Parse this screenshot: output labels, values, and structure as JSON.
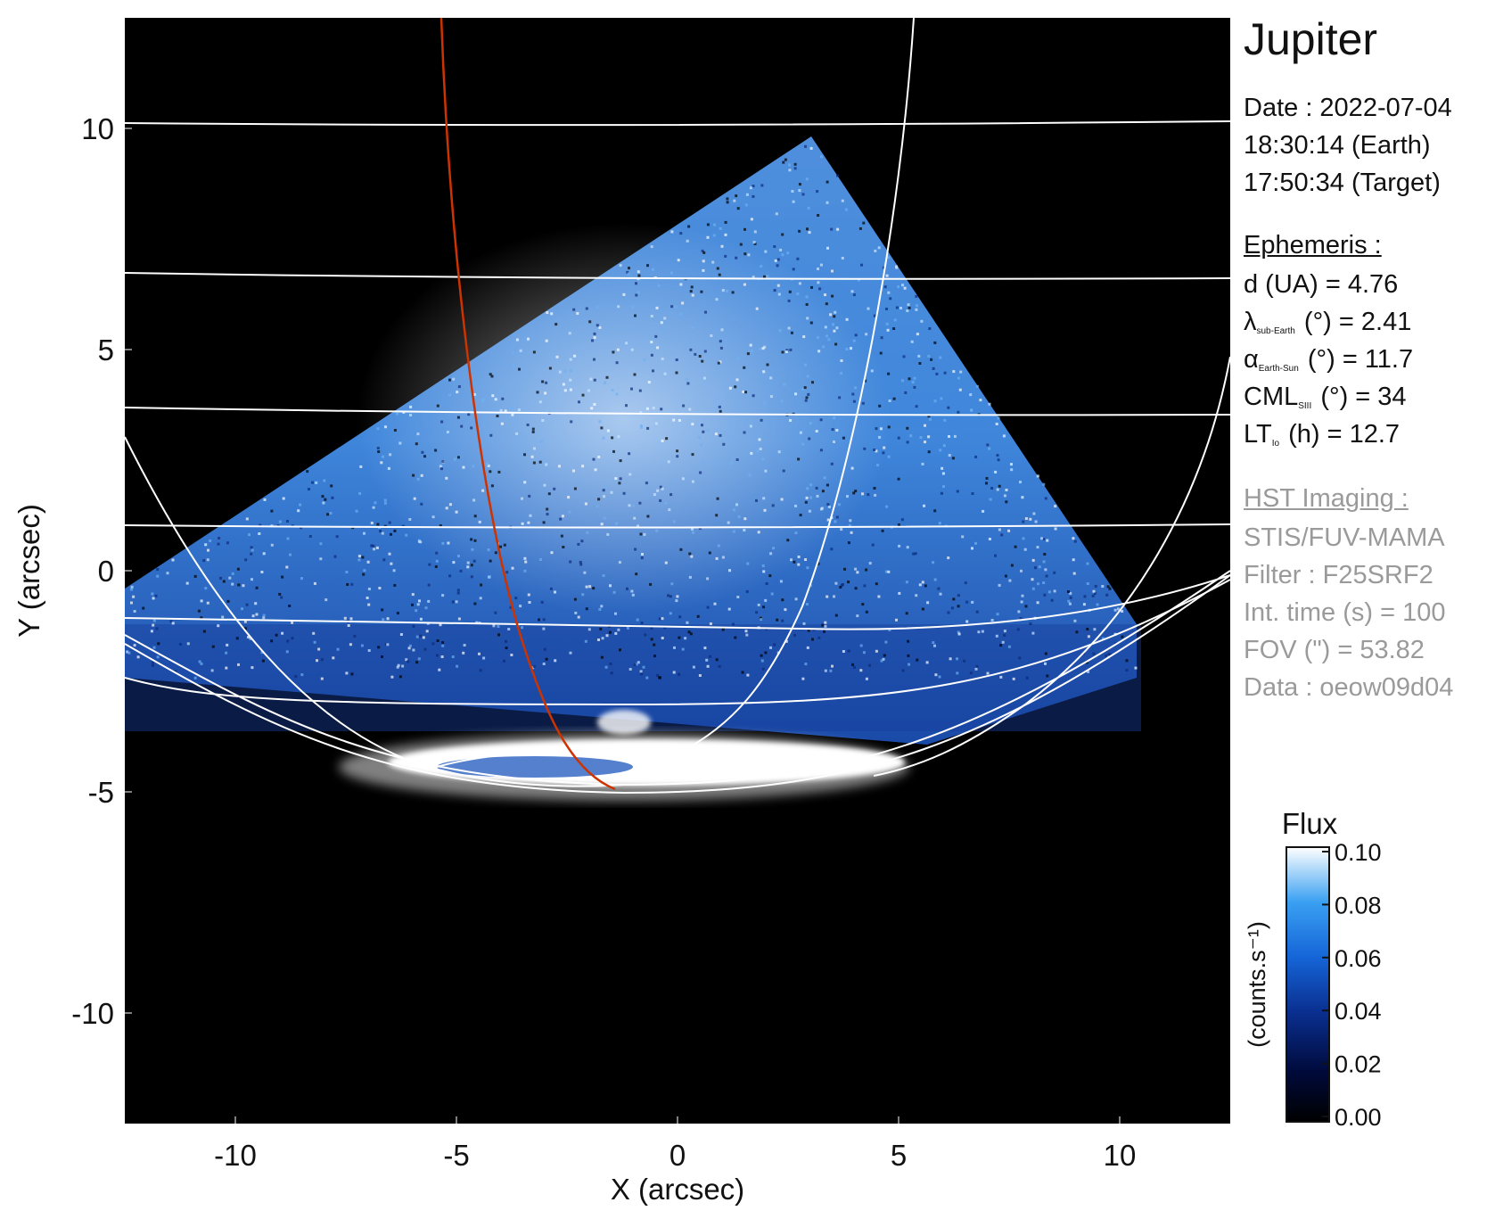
{
  "chart_data": {
    "type": "heatmap",
    "xlabel": "X (arcsec)",
    "ylabel": "Y (arcsec)",
    "xlim": [
      -12.5,
      12.5
    ],
    "ylim": [
      -12.5,
      12.5
    ],
    "xticks": [
      -10,
      -5,
      0,
      5,
      10
    ],
    "yticks": [
      10,
      5,
      0,
      -5,
      -10
    ],
    "grid": "latitude/longitude overlay on planet limb",
    "colorbar": {
      "title": "Flux",
      "label": "(counts.s⁻¹)",
      "range": [
        0.0,
        0.1
      ],
      "ticks": [
        "0.10",
        "0.08",
        "0.06",
        "0.04",
        "0.02",
        "0.00"
      ],
      "colormap": [
        "#000000",
        "#000a3a",
        "#0a2f90",
        "#1565d8",
        "#3aa0f2",
        "#ffffff"
      ]
    },
    "footprint_color": "#cc3300",
    "grid_color": "#ffffff"
  },
  "info": {
    "target": "Jupiter",
    "date": "Date : 2022-07-04",
    "time_earth": "18:30:14 (Earth)",
    "time_target": "17:50:34 (Target)",
    "ephemeris_title": "Ephemeris :",
    "distance": "d (UA)    = 4.76",
    "lambda_sym": "λ",
    "lambda_sub": "sub-Earth",
    "lambda_val": "(°) = 2.41",
    "alpha_sym": "α",
    "alpha_sub": "Earth-Sun",
    "alpha_val": "(°) = 11.7",
    "cml_sym": "CML",
    "cml_sub": "SIII",
    "cml_val": "(°) = 34",
    "lt_sym": "LT",
    "lt_sub": "Io",
    "lt_val": "(h) = 12.7",
    "hst_title": "HST Imaging :",
    "instrument": "STIS/FUV-MAMA",
    "filter": "Filter : F25SRF2",
    "int_time": "Int. time (s) = 100",
    "fov": "FOV (\") = 53.82",
    "dataset": "Data : oeow09d04"
  }
}
